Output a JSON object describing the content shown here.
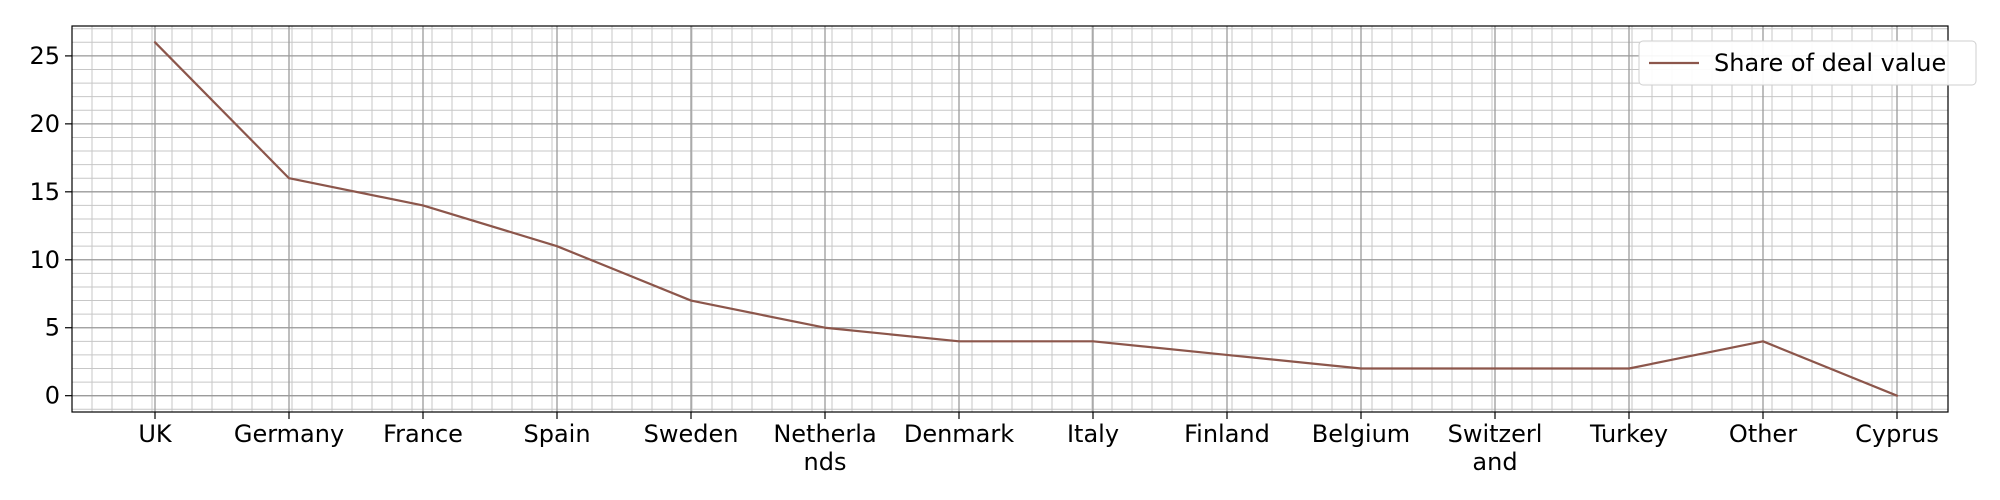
{
  "chart_data": {
    "type": "line",
    "categories": [
      "UK",
      "Germany",
      "France",
      "Spain",
      "Sweden",
      "Netherlands",
      "Denmark",
      "Italy",
      "Finland",
      "Belgium",
      "Switzerland",
      "Turkey",
      "Other",
      "Cyprus"
    ],
    "category_labels": [
      [
        "UK"
      ],
      [
        "Germany"
      ],
      [
        "France"
      ],
      [
        "Spain"
      ],
      [
        "Sweden"
      ],
      [
        "Netherla",
        "nds"
      ],
      [
        "Denmark"
      ],
      [
        "Italy"
      ],
      [
        "Finland"
      ],
      [
        "Belgium"
      ],
      [
        "Switzerl",
        "and"
      ],
      [
        "Turkey"
      ],
      [
        "Other"
      ],
      [
        "Cyprus"
      ]
    ],
    "series": [
      {
        "name": "Share of deal value",
        "values": [
          26,
          16,
          14,
          11,
          7,
          5,
          4,
          4,
          3,
          2,
          2,
          2,
          4,
          0
        ],
        "color": "#8c564b"
      }
    ],
    "title": "",
    "xlabel": "",
    "ylabel": "",
    "ylim": [
      -1.2,
      27.2
    ],
    "yticks": [
      0,
      5,
      10,
      15,
      20,
      25
    ],
    "grid": true,
    "minor_grid": true,
    "legend_position": "top-right"
  }
}
